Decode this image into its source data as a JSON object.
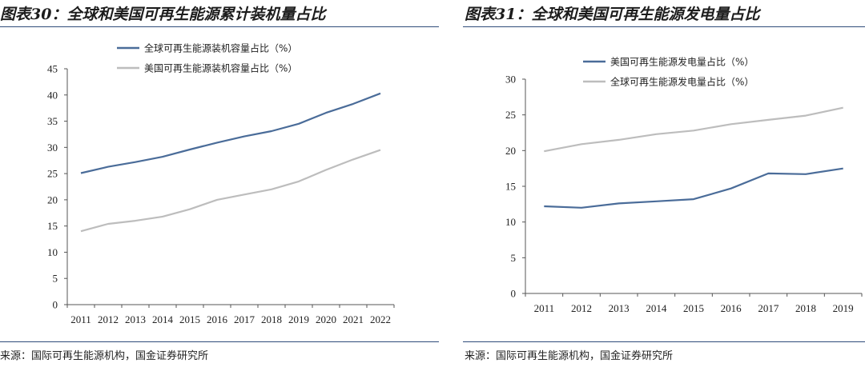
{
  "left": {
    "title": "图表30：全球和美国可再生能源累计装机量占比",
    "source": "来源：国际可再生能源机构，国金证券研究所"
  },
  "right": {
    "title": "图表31：全球和美国可再生能源发电量占比",
    "source": "来源：国际可再生能源机构，国金证券研究所"
  },
  "colors": {
    "primary": "#4a6c99",
    "secondary": "#bdbdbd",
    "rule": "#2f4c7a"
  },
  "chart_data": [
    {
      "type": "line",
      "categories": [
        "2011",
        "2012",
        "2013",
        "2014",
        "2015",
        "2016",
        "2017",
        "2018",
        "2019",
        "2020",
        "2021",
        "2022"
      ],
      "ylim": [
        0,
        45
      ],
      "yticks": [
        0,
        5,
        10,
        15,
        20,
        25,
        30,
        35,
        40,
        45
      ],
      "grid": false,
      "legend": "top-left",
      "series": [
        {
          "name": "全球可再生能源装机容量占比（%）",
          "color": "#4a6c99",
          "values": [
            25.1,
            26.3,
            27.2,
            28.2,
            29.6,
            30.9,
            32.1,
            33.1,
            34.5,
            36.6,
            38.3,
            40.3
          ]
        },
        {
          "name": "美国可再生能源装机容量占比（%）",
          "color": "#bdbdbd",
          "values": [
            14.0,
            15.4,
            16.0,
            16.8,
            18.2,
            20.0,
            21.0,
            22.0,
            23.5,
            25.7,
            27.7,
            29.5
          ]
        }
      ]
    },
    {
      "type": "line",
      "categories": [
        "2011",
        "2012",
        "2013",
        "2014",
        "2015",
        "2016",
        "2017",
        "2018",
        "2019"
      ],
      "ylim": [
        0,
        30
      ],
      "yticks": [
        0,
        5,
        10,
        15,
        20,
        25,
        30
      ],
      "grid": false,
      "legend": "top-left",
      "series": [
        {
          "name": "美国可再生能源发电量占比（%）",
          "color": "#4a6c99",
          "values": [
            12.2,
            12.0,
            12.6,
            12.9,
            13.2,
            14.7,
            16.8,
            16.7,
            17.5
          ]
        },
        {
          "name": "全球可再生能源发电量占比（%）",
          "color": "#bdbdbd",
          "values": [
            19.9,
            20.9,
            21.5,
            22.3,
            22.8,
            23.7,
            24.3,
            24.9,
            26.0
          ]
        }
      ]
    }
  ]
}
